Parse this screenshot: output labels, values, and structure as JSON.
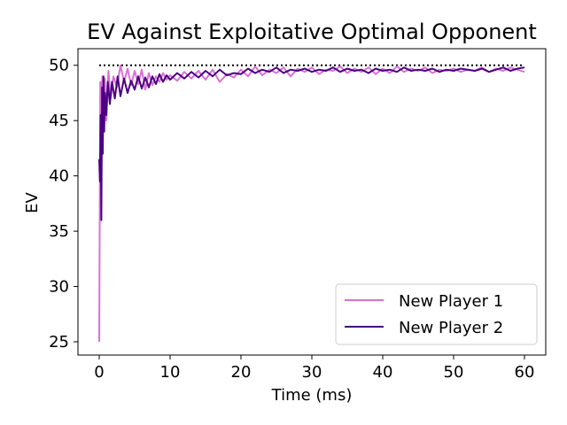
{
  "chart_data": {
    "type": "line",
    "title": "EV Against Exploitative Optimal Opponent",
    "xlabel": "Time (ms)",
    "ylabel": "EV",
    "xlim": [
      -3,
      63
    ],
    "ylim": [
      23.8,
      51.5
    ],
    "xticks": [
      0,
      10,
      20,
      30,
      40,
      50,
      60
    ],
    "yticks": [
      25,
      30,
      35,
      40,
      45,
      50
    ],
    "grid": false,
    "legend_position": "lower-right",
    "reference_line": {
      "y": 50,
      "x": [
        0,
        60
      ],
      "color": "#000000",
      "style": "dotted"
    },
    "series": [
      {
        "name": "New Player 1",
        "color": "#da70d6",
        "x": [
          0,
          0.15,
          0.3,
          0.45,
          0.6,
          0.8,
          1.0,
          1.3,
          1.6,
          2.0,
          2.5,
          3.0,
          3.5,
          4.0,
          4.5,
          5,
          5.5,
          6,
          6.5,
          7,
          7.5,
          8,
          8.5,
          9,
          9.5,
          10,
          11,
          12,
          13,
          14,
          15,
          16,
          17,
          18,
          19,
          20,
          21,
          22,
          23,
          24,
          25,
          26,
          27,
          28,
          29,
          30,
          31,
          32,
          33,
          34,
          35,
          36,
          37,
          38,
          39,
          40,
          41,
          42,
          43,
          44,
          45,
          46,
          47,
          48,
          49,
          50,
          51,
          52,
          53,
          54,
          55,
          56,
          57,
          58,
          59,
          60
        ],
        "values": [
          25,
          48.5,
          47.0,
          49.0,
          46.5,
          48.8,
          45.0,
          49.5,
          47.0,
          49.0,
          48.0,
          50.0,
          48.5,
          49.7,
          48.2,
          49.5,
          48.3,
          49.6,
          47.8,
          49.3,
          48.2,
          49.0,
          48.5,
          49.3,
          48.7,
          49.1,
          48.6,
          49.4,
          48.8,
          49.5,
          48.7,
          49.6,
          48.5,
          49.2,
          48.9,
          49.6,
          49.0,
          49.9,
          49.1,
          49.6,
          49.3,
          49.8,
          49.0,
          49.7,
          49.4,
          49.8,
          49.2,
          49.6,
          49.5,
          49.9,
          49.3,
          49.7,
          49.4,
          49.8,
          49.2,
          49.7,
          49.3,
          49.9,
          49.4,
          49.7,
          49.5,
          49.8,
          49.3,
          49.6,
          49.5,
          49.7,
          49.4,
          49.6,
          49.5,
          49.8,
          49.4,
          49.7,
          49.5,
          49.8,
          49.6,
          49.4
        ]
      },
      {
        "name": "New Player 2",
        "color": "#4b0082",
        "x": [
          0,
          0.1,
          0.2,
          0.3,
          0.4,
          0.5,
          0.6,
          0.7,
          0.8,
          1.0,
          1.2,
          1.5,
          1.8,
          2.2,
          2.6,
          3.0,
          3.5,
          4.0,
          4.5,
          5,
          5.5,
          6,
          6.5,
          7,
          7.5,
          8,
          8.5,
          9,
          9.5,
          10,
          11,
          12,
          13,
          14,
          15,
          16,
          17,
          18,
          19,
          20,
          21,
          22,
          23,
          24,
          25,
          26,
          27,
          28,
          29,
          30,
          31,
          32,
          33,
          34,
          35,
          36,
          37,
          38,
          39,
          40,
          41,
          42,
          43,
          44,
          45,
          46,
          47,
          48,
          49,
          50,
          51,
          52,
          53,
          54,
          55,
          56,
          57,
          58,
          59,
          60
        ],
        "values": [
          41.5,
          39.5,
          45.5,
          36.0,
          48.0,
          42.0,
          49.0,
          44.0,
          47.5,
          45.5,
          48.5,
          46.5,
          48.5,
          47.0,
          49.0,
          47.2,
          48.8,
          47.5,
          48.6,
          47.8,
          49.0,
          47.9,
          48.9,
          48.0,
          49.0,
          48.3,
          49.2,
          48.5,
          49.1,
          48.7,
          49.3,
          48.8,
          49.4,
          48.9,
          49.5,
          49.0,
          49.6,
          49.1,
          49.3,
          49.2,
          49.7,
          49.3,
          49.6,
          49.4,
          49.8,
          49.3,
          49.6,
          49.5,
          49.7,
          49.4,
          49.6,
          49.5,
          49.8,
          49.4,
          49.7,
          49.5,
          49.6,
          49.3,
          49.7,
          49.5,
          49.6,
          49.4,
          49.8,
          49.5,
          49.6,
          49.5,
          49.7,
          49.4,
          49.6,
          49.5,
          49.7,
          49.6,
          49.5,
          49.7,
          49.4,
          49.6,
          49.8,
          49.5,
          49.7,
          49.8
        ]
      }
    ]
  }
}
